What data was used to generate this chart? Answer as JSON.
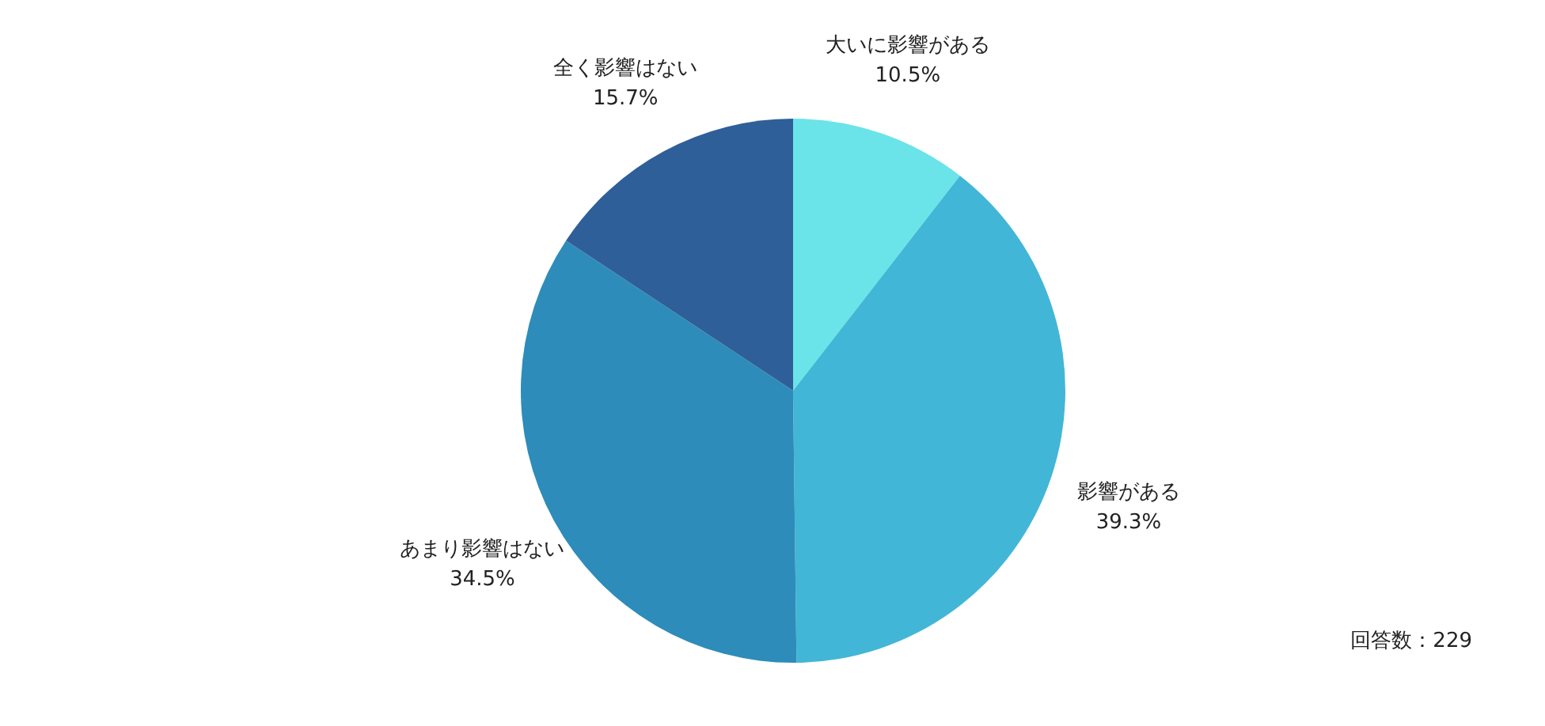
{
  "chart_data": {
    "type": "pie",
    "categories": [
      "大いに影響がある",
      "影響がある",
      "あまり影響はない",
      "全く影響はない"
    ],
    "values": [
      10.5,
      39.3,
      34.5,
      15.7
    ],
    "colors": [
      "#6ae4e8",
      "#42b6d6",
      "#2d8cba",
      "#2e5f98"
    ],
    "value_labels": [
      "10.5%",
      "39.3%",
      "34.5%",
      "15.7%"
    ],
    "annotations": [
      "回答数：229"
    ]
  }
}
